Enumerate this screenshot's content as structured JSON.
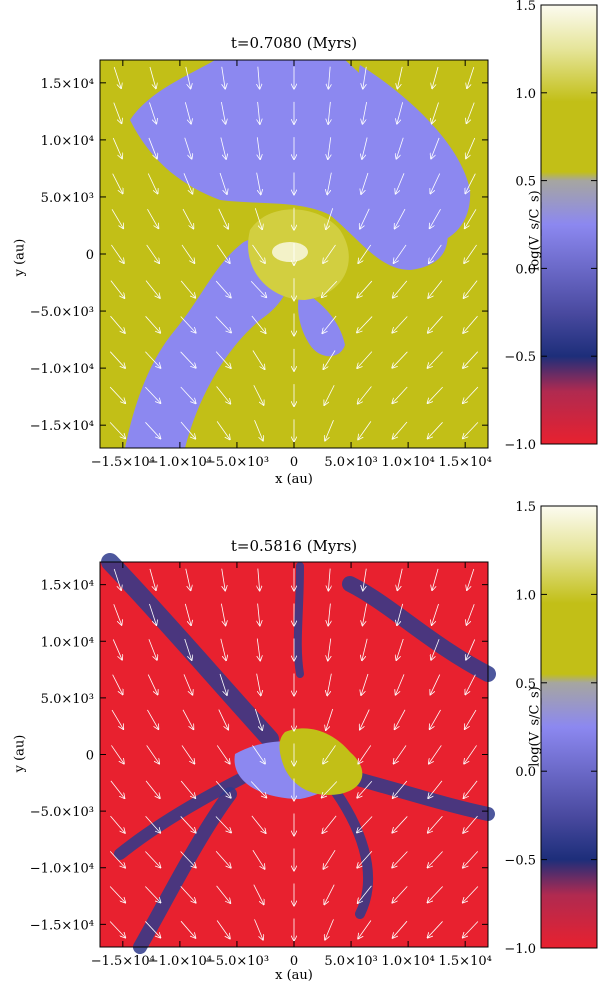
{
  "chart_data": [
    {
      "type": "heatmap",
      "title": "t=0.7080 (Myrs)",
      "xlabel": "x (au)",
      "ylabel": "y (au)",
      "colorbar_label": "log(V_s/C_s)",
      "xlim": [
        -17000,
        17000
      ],
      "ylim": [
        -17000,
        17000
      ],
      "x_ticks": [
        -15000,
        -10000,
        -5000,
        0,
        5000,
        10000,
        15000
      ],
      "x_tick_labels": [
        "−1.5×10⁴",
        "−1.0×10⁴",
        "−5.0×10³",
        "0",
        "5.0×10³",
        "1.0×10⁴",
        "1.5×10⁴"
      ],
      "y_ticks": [
        15000,
        10000,
        5000,
        0,
        -5000,
        -10000,
        -15000
      ],
      "y_tick_labels": [
        "1.5×10⁴",
        "1.0×10⁴",
        "5.0×10³",
        "0",
        "−5.0×10³",
        "−1.0×10⁴",
        "−1.5×10⁴"
      ],
      "colorbar_range": [
        -1.0,
        1.5
      ],
      "colorbar_ticks": [
        1.5,
        1.0,
        0.5,
        0.0,
        -0.5,
        -1.0
      ],
      "colorbar_tick_labels": [
        "1.5",
        "1.0",
        "0.5",
        "0.0",
        "−0.5",
        "−1.0"
      ],
      "field_mean_log_ratio": 0.5,
      "dominant_colors": {
        "supersonic": "#c2bf17",
        "transonic": "#8c88f0",
        "subsonic": "#e8212f"
      }
    },
    {
      "type": "heatmap",
      "title": "t=0.5816 (Myrs)",
      "xlabel": "x (au)",
      "ylabel": "y (au)",
      "colorbar_label": "log(V_s/C_s)",
      "xlim": [
        -17000,
        17000
      ],
      "ylim": [
        -17000,
        17000
      ],
      "x_ticks": [
        -15000,
        -10000,
        -5000,
        0,
        5000,
        10000,
        15000
      ],
      "x_tick_labels": [
        "−1.5×10⁴",
        "−1.0×10⁴",
        "−5.0×10³",
        "0",
        "5.0×10³",
        "1.0×10⁴",
        "1.5×10⁴"
      ],
      "y_ticks": [
        15000,
        10000,
        5000,
        0,
        -5000,
        -10000,
        -15000
      ],
      "y_tick_labels": [
        "1.5×10⁴",
        "1.0×10⁴",
        "5.0×10³",
        "0",
        "−5.0×10³",
        "−1.0×10⁴",
        "−1.5×10⁴"
      ],
      "colorbar_range": [
        -1.0,
        1.5
      ],
      "colorbar_ticks": [
        1.5,
        1.0,
        0.5,
        0.0,
        -0.5,
        -1.0
      ],
      "colorbar_tick_labels": [
        "1.5",
        "1.0",
        "0.5",
        "0.0",
        "−0.5",
        "−1.0"
      ],
      "field_mean_log_ratio": -1.0,
      "dominant_colors": {
        "supersonic": "#c2bf17",
        "transonic": "#8c88f0",
        "subsonic": "#e8212f"
      }
    }
  ]
}
